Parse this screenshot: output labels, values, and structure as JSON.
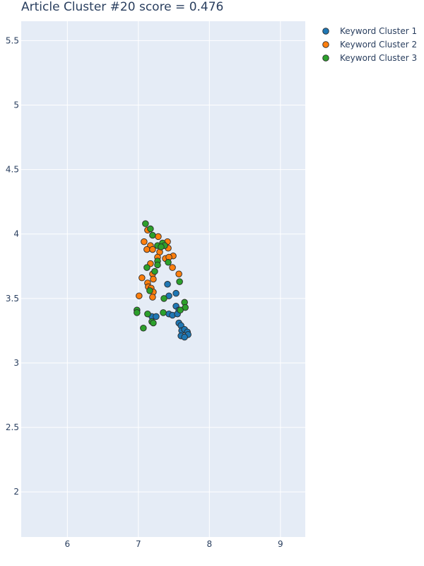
{
  "chart_data": {
    "type": "scatter",
    "title": "Article Cluster #20 score = 0.476",
    "xlabel": "",
    "ylabel": "",
    "xlim": [
      5.35,
      9.35
    ],
    "ylim": [
      1.65,
      5.65
    ],
    "x_ticks": [
      6,
      7,
      8,
      9
    ],
    "y_ticks": [
      2,
      2.5,
      3,
      3.5,
      4,
      4.5,
      5,
      5.5
    ],
    "grid": true,
    "legend_position": "top-right",
    "series": [
      {
        "name": "Keyword Cluster 1",
        "color": "#1f77b4",
        "points": [
          {
            "x": 7.41,
            "y": 3.61
          },
          {
            "x": 7.53,
            "y": 3.54
          },
          {
            "x": 7.43,
            "y": 3.52
          },
          {
            "x": 7.53,
            "y": 3.44
          },
          {
            "x": 7.57,
            "y": 3.41
          },
          {
            "x": 7.43,
            "y": 3.38
          },
          {
            "x": 7.48,
            "y": 3.37
          },
          {
            "x": 7.55,
            "y": 3.38
          },
          {
            "x": 7.19,
            "y": 3.36
          },
          {
            "x": 7.25,
            "y": 3.36
          },
          {
            "x": 7.57,
            "y": 3.31
          },
          {
            "x": 7.6,
            "y": 3.29
          },
          {
            "x": 7.61,
            "y": 3.25
          },
          {
            "x": 7.65,
            "y": 3.26
          },
          {
            "x": 7.69,
            "y": 3.24
          },
          {
            "x": 7.7,
            "y": 3.22
          },
          {
            "x": 7.6,
            "y": 3.21
          },
          {
            "x": 7.65,
            "y": 3.2
          }
        ]
      },
      {
        "name": "Keyword Cluster 2",
        "color": "#ff7f0e",
        "points": [
          {
            "x": 7.13,
            "y": 4.03
          },
          {
            "x": 7.28,
            "y": 3.98
          },
          {
            "x": 7.08,
            "y": 3.94
          },
          {
            "x": 7.41,
            "y": 3.94
          },
          {
            "x": 7.17,
            "y": 3.91
          },
          {
            "x": 7.12,
            "y": 3.88
          },
          {
            "x": 7.2,
            "y": 3.88
          },
          {
            "x": 7.42,
            "y": 3.89
          },
          {
            "x": 7.3,
            "y": 3.86
          },
          {
            "x": 7.49,
            "y": 3.83
          },
          {
            "x": 7.27,
            "y": 3.82
          },
          {
            "x": 7.38,
            "y": 3.81
          },
          {
            "x": 7.43,
            "y": 3.82
          },
          {
            "x": 7.17,
            "y": 3.77
          },
          {
            "x": 7.48,
            "y": 3.74
          },
          {
            "x": 7.2,
            "y": 3.69
          },
          {
            "x": 7.57,
            "y": 3.69
          },
          {
            "x": 7.05,
            "y": 3.66
          },
          {
            "x": 7.21,
            "y": 3.65
          },
          {
            "x": 7.13,
            "y": 3.62
          },
          {
            "x": 7.14,
            "y": 3.59
          },
          {
            "x": 7.18,
            "y": 3.58
          },
          {
            "x": 7.21,
            "y": 3.55
          },
          {
            "x": 7.01,
            "y": 3.52
          },
          {
            "x": 7.2,
            "y": 3.51
          }
        ]
      },
      {
        "name": "Keyword Cluster 3",
        "color": "#2ca02c",
        "points": [
          {
            "x": 7.1,
            "y": 4.08
          },
          {
            "x": 7.17,
            "y": 4.04
          },
          {
            "x": 7.2,
            "y": 3.99
          },
          {
            "x": 7.34,
            "y": 3.93
          },
          {
            "x": 7.27,
            "y": 3.91
          },
          {
            "x": 7.37,
            "y": 3.91
          },
          {
            "x": 7.32,
            "y": 3.9
          },
          {
            "x": 7.27,
            "y": 3.79
          },
          {
            "x": 7.42,
            "y": 3.78
          },
          {
            "x": 7.27,
            "y": 3.76
          },
          {
            "x": 7.12,
            "y": 3.74
          },
          {
            "x": 7.23,
            "y": 3.71
          },
          {
            "x": 7.58,
            "y": 3.63
          },
          {
            "x": 7.16,
            "y": 3.56
          },
          {
            "x": 7.36,
            "y": 3.5
          },
          {
            "x": 7.65,
            "y": 3.47
          },
          {
            "x": 7.66,
            "y": 3.43
          },
          {
            "x": 6.98,
            "y": 3.41
          },
          {
            "x": 7.59,
            "y": 3.41
          },
          {
            "x": 6.98,
            "y": 3.39
          },
          {
            "x": 7.35,
            "y": 3.39
          },
          {
            "x": 7.13,
            "y": 3.38
          },
          {
            "x": 7.19,
            "y": 3.32
          },
          {
            "x": 7.21,
            "y": 3.31
          },
          {
            "x": 7.07,
            "y": 3.27
          }
        ]
      }
    ]
  }
}
